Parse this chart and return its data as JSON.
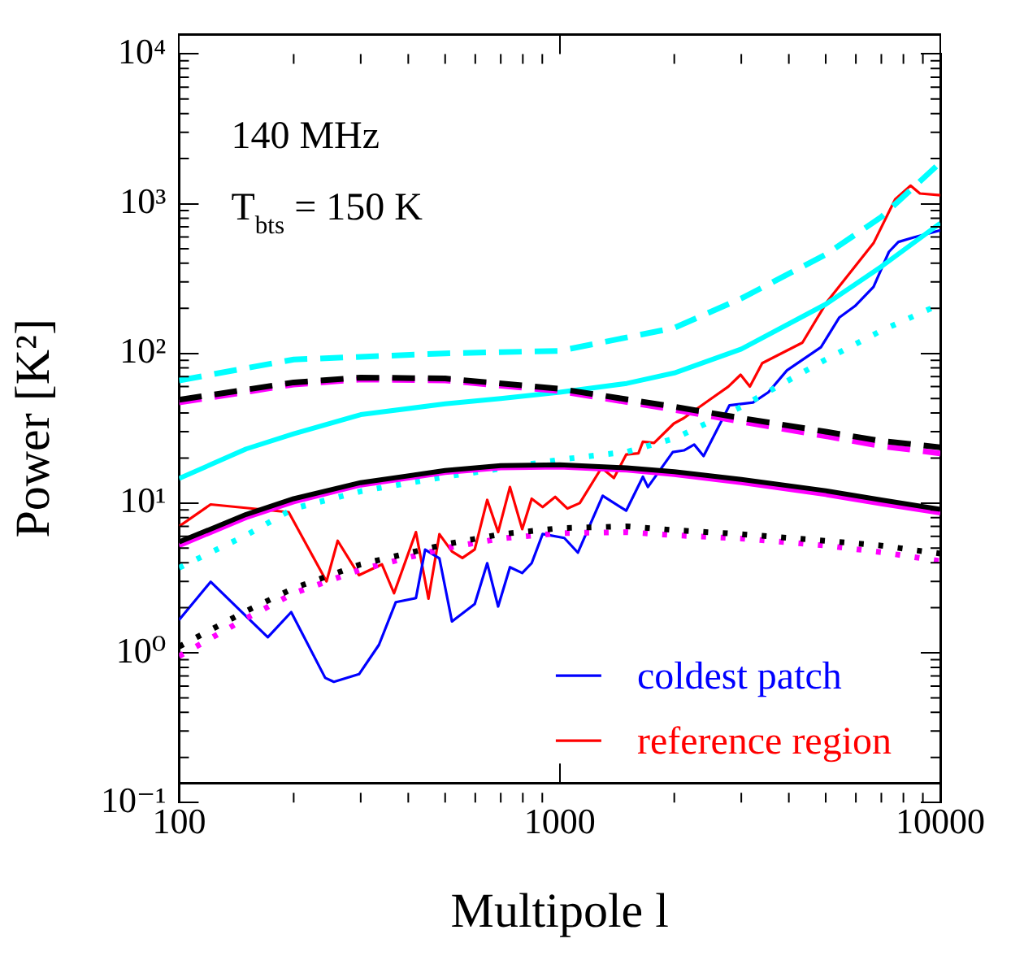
{
  "chart_data": {
    "type": "line",
    "xlabel": "Multipole l",
    "ylabel": "Power [K²]",
    "log": "xy",
    "grid": false,
    "legend": "bottom right",
    "xlim": [
      100,
      10000
    ],
    "xticks": [
      100,
      1000,
      10000
    ],
    "ylim": [
      0.1,
      10000
    ],
    "yticks": [
      {
        "value": 0.1,
        "label": "10⁻¹"
      },
      {
        "value": 1,
        "label": "10⁰"
      },
      {
        "value": 10,
        "label": "10¹"
      },
      {
        "value": 100,
        "label": "10²"
      },
      {
        "value": 1000,
        "label": "10³"
      },
      {
        "value": 10000,
        "label": "10⁴"
      }
    ],
    "annotations": [
      "140 MHz",
      "T$_{bts}$ = 150 K"
    ],
    "series": [
      {
        "color": "#00ffff",
        "line_style": "dashed",
        "x": [
          100,
          200,
          500,
          1000,
          2000,
          3000,
          5000,
          7000,
          10000
        ],
        "values": [
          66,
          91,
          100,
          104,
          148,
          233,
          457,
          815,
          1880
        ]
      },
      {
        "color": "#000000",
        "line_style": "dashed",
        "x": [
          100,
          200,
          300,
          500,
          1000,
          2000,
          3000,
          5000,
          7000,
          10000
        ],
        "values": [
          49,
          64,
          69,
          68,
          58,
          44,
          37,
          30,
          26,
          23.6
        ]
      },
      {
        "color": "#ff00ff",
        "line_style": "dashed",
        "x": [
          100,
          200,
          300,
          500,
          1000,
          2000,
          3000,
          5000,
          7000,
          10000
        ],
        "values": [
          47,
          62,
          67,
          66,
          56,
          42,
          35,
          28,
          24,
          21.5
        ]
      },
      {
        "color": "#00ffff",
        "line_style": "solid",
        "x": [
          100,
          150,
          200,
          300,
          500,
          700,
          1000,
          1500,
          2000,
          3000,
          5000,
          7000,
          10000
        ],
        "values": [
          14.6,
          23,
          29,
          39,
          46,
          50,
          55,
          63,
          74,
          107,
          213,
          380,
          740
        ]
      },
      {
        "color": "#000000",
        "line_style": "solid",
        "x": [
          100,
          150,
          200,
          300,
          500,
          700,
          1000,
          1500,
          2000,
          3000,
          5000,
          7000,
          10000
        ],
        "values": [
          5.5,
          8.4,
          10.7,
          13.7,
          16.5,
          17.8,
          18,
          17.2,
          16.2,
          14.4,
          12.1,
          10.5,
          9.1
        ]
      },
      {
        "color": "#ff00ff",
        "line_style": "solid",
        "x": [
          100,
          150,
          200,
          300,
          500,
          700,
          1000,
          1500,
          2000,
          3000,
          5000,
          7000,
          10000
        ],
        "values": [
          5.2,
          8.0,
          10.2,
          13.2,
          16,
          17.2,
          17.4,
          16.6,
          15.5,
          13.7,
          11.4,
          9.9,
          8.6
        ]
      },
      {
        "color": "#00ffff",
        "line_style": "dotted",
        "x": [
          100,
          150,
          200,
          300,
          500,
          700,
          1000,
          1500,
          2000,
          3000,
          5000,
          7000,
          10000
        ],
        "values": [
          3.7,
          6.1,
          9.2,
          12,
          15,
          17,
          19.5,
          22,
          27,
          44,
          91,
          142,
          213
        ]
      },
      {
        "color": "#000000",
        "line_style": "dotted",
        "x": [
          100,
          150,
          200,
          300,
          500,
          700,
          1000,
          1500,
          2000,
          3000,
          5000,
          7000,
          10000
        ],
        "values": [
          1.1,
          1.9,
          2.7,
          3.9,
          5.3,
          6.2,
          6.8,
          7,
          6.6,
          6.2,
          5.6,
          5.2,
          4.6
        ]
      },
      {
        "color": "#ff00ff",
        "line_style": "dotted",
        "x": [
          100,
          150,
          200,
          300,
          500,
          700,
          1000,
          1500,
          2000,
          3000,
          5000,
          7000,
          10000
        ],
        "values": [
          0.95,
          1.7,
          2.5,
          3.6,
          5.0,
          5.8,
          6.3,
          6.4,
          6.1,
          5.8,
          5.2,
          4.7,
          4.1
        ]
      },
      {
        "name": "coldest patch",
        "color": "#0000ff",
        "line_style": "solid",
        "x": [
          100,
          121,
          171,
          197,
          242,
          255,
          297,
          335,
          371,
          419,
          443,
          483,
          521,
          598,
          645,
          689,
          740,
          797,
          844,
          902,
          1028,
          1116,
          1297,
          1495,
          1654,
          1705,
          1982,
          2120,
          2256,
          2388,
          2793,
          3220,
          3535,
          3954,
          4857,
          5431,
          5966,
          6677,
          7329,
          7759,
          8518,
          10000
        ],
        "values": [
          1.66,
          2.98,
          1.27,
          1.87,
          0.68,
          0.64,
          0.72,
          1.13,
          2.18,
          2.32,
          4.89,
          4.27,
          1.62,
          2.12,
          3.97,
          2.04,
          3.73,
          3.41,
          3.97,
          6.22,
          5.85,
          4.67,
          11.2,
          8.9,
          15.0,
          12.8,
          21.9,
          22.5,
          24.6,
          20.6,
          45,
          47,
          55,
          77,
          110,
          174,
          207,
          278,
          477,
          555,
          596,
          664
        ]
      },
      {
        "name": "reference region",
        "color": "#ff0000",
        "line_style": "solid",
        "x": [
          100,
          121,
          194,
          244,
          261,
          297,
          341,
          367,
          419,
          452,
          483,
          521,
          555,
          598,
          645,
          689,
          740,
          797,
          844,
          902,
          973,
          1048,
          1129,
          1288,
          1388,
          1495,
          1610,
          1654,
          1770,
          1995,
          2120,
          2477,
          2773,
          2988,
          3160,
          3405,
          4342,
          5044,
          6677,
          7610,
          8350,
          8840,
          10000
        ],
        "values": [
          7.0,
          9.8,
          8.7,
          3.0,
          5.6,
          3.3,
          3.9,
          2.5,
          6.4,
          2.3,
          6.2,
          4.75,
          4.3,
          4.9,
          10.5,
          6.4,
          12.8,
          6.7,
          10.7,
          9.4,
          11.0,
          9.2,
          10.0,
          17.2,
          14.7,
          21.1,
          21.5,
          25.7,
          25.2,
          34,
          37,
          49,
          60,
          72,
          60,
          86,
          118,
          222,
          545,
          1070,
          1320,
          1170,
          1140
        ]
      }
    ]
  }
}
